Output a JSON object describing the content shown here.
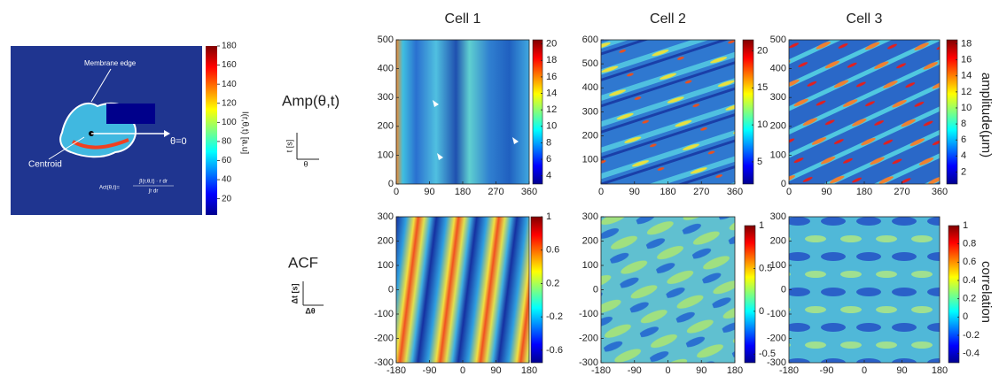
{
  "left_panel": {
    "membrane_label": "Membrane edge",
    "centroid_label": "Centroid",
    "theta_label": "θ=0",
    "formula_lhs": "Act(θ,t)=",
    "formula_numerator": "∫I(r,θ,t) · r dr",
    "formula_denominator": "∫r dr",
    "colorbar_label": "I(r,θ,t) [a.u]",
    "clim": [
      3,
      180
    ],
    "cticks": [
      20,
      40,
      60,
      80,
      100,
      120,
      140,
      160,
      180
    ]
  },
  "row_labels": [
    {
      "label": "Amp(θ,t)",
      "axis_y": "t [s]",
      "axis_x": "θ",
      "colorbar_label": "amplitude(μm)"
    },
    {
      "label": "ACF",
      "axis_y": "Δt [s]",
      "axis_x": "Δθ",
      "colorbar_label": "correlation"
    }
  ],
  "chart_data": [
    {
      "type": "heatmap",
      "title": "Cell 1",
      "xlim": [
        0,
        360
      ],
      "xticks": [
        0,
        90,
        180,
        270,
        360
      ],
      "ylim": [
        0,
        500
      ],
      "yticks": [
        0,
        100,
        200,
        300,
        400,
        500
      ],
      "clim": [
        3,
        20.5
      ],
      "cticks": [
        4,
        6,
        8,
        10,
        12,
        14,
        16,
        18,
        20
      ]
    },
    {
      "type": "heatmap",
      "title": "Cell 2",
      "xlim": [
        0,
        360
      ],
      "xticks": [
        0,
        90,
        180,
        270,
        360
      ],
      "ylim": [
        0,
        600
      ],
      "yticks": [
        100,
        200,
        300,
        400,
        500,
        600
      ],
      "clim": [
        2,
        21.5
      ],
      "cticks": [
        5,
        10,
        15,
        20
      ]
    },
    {
      "type": "heatmap",
      "title": "Cell 3",
      "xlim": [
        0,
        360
      ],
      "xticks": [
        0,
        90,
        180,
        270,
        360
      ],
      "ylim": [
        0,
        500
      ],
      "yticks": [
        0,
        100,
        200,
        300,
        400,
        500
      ],
      "clim": [
        0.5,
        18.5
      ],
      "cticks": [
        2,
        4,
        6,
        8,
        10,
        12,
        14,
        16,
        18
      ]
    },
    {
      "type": "heatmap",
      "xlim": [
        -180,
        180
      ],
      "xticks": [
        -180,
        -90,
        0,
        90,
        180
      ],
      "ylim": [
        -300,
        300
      ],
      "yticks": [
        -300,
        -200,
        -100,
        0,
        100,
        200,
        300
      ],
      "clim": [
        -0.75,
        1
      ],
      "cticks": [
        -0.6,
        -0.2,
        0.2,
        0.6,
        1
      ]
    },
    {
      "type": "heatmap",
      "xlim": [
        -180,
        180
      ],
      "xticks": [
        -180,
        -90,
        0,
        90,
        180
      ],
      "ylim": [
        -300,
        300
      ],
      "yticks": [
        -300,
        -200,
        -100,
        0,
        100,
        200,
        300
      ],
      "clim": [
        -0.6,
        1
      ],
      "cticks": [
        -0.5,
        0,
        0.5,
        1
      ]
    },
    {
      "type": "heatmap",
      "xlim": [
        -180,
        180
      ],
      "xticks": [
        -180,
        -90,
        0,
        90,
        180
      ],
      "ylim": [
        -300,
        300
      ],
      "yticks": [
        -300,
        -200,
        -100,
        0,
        100,
        200,
        300
      ],
      "clim": [
        -0.5,
        1
      ],
      "cticks": [
        -0.4,
        -0.2,
        0,
        0.2,
        0.4,
        0.6,
        0.8,
        1
      ]
    }
  ]
}
